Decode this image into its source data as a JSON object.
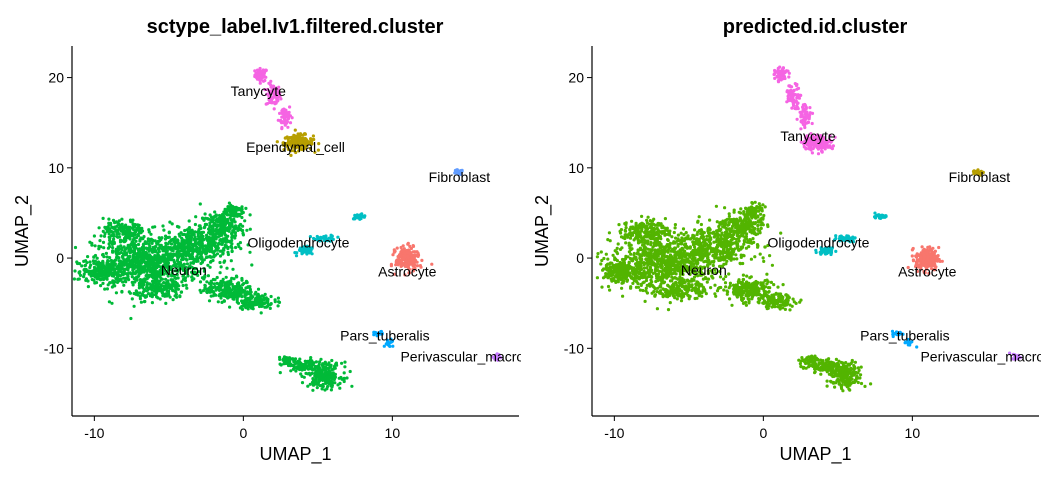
{
  "chart_data": [
    {
      "type": "scatter",
      "title": "sctype_label.lv1.filtered.cluster",
      "xlabel": "UMAP_1",
      "ylabel": "UMAP_2",
      "xlim": [
        -11.5,
        18.5
      ],
      "ylim": [
        -17.5,
        23.5
      ],
      "xticks": [
        -10,
        0,
        10
      ],
      "yticks": [
        20,
        10,
        0,
        -10
      ],
      "grid": false,
      "legend": "none",
      "clusters": [
        {
          "label": "Tanycyte",
          "color": "#F564E3",
          "label_pos": [
            1.0,
            18.5
          ],
          "centroid": [
            3.0,
            16.8
          ]
        },
        {
          "label": "Ependymal_cell",
          "color": "#B79F00",
          "label_pos": [
            3.5,
            12.3
          ],
          "centroid": [
            3.8,
            12.8
          ]
        },
        {
          "label": "Fibroblast",
          "color": "#619CFF",
          "label_pos": [
            14.5,
            9.0
          ],
          "centroid": [
            14.5,
            9.4
          ]
        },
        {
          "label": "Oligodendrocyte",
          "color": "#00BFC4",
          "label_pos": [
            3.7,
            1.7
          ],
          "centroid": [
            5.5,
            2.0
          ]
        },
        {
          "label": "Neuron",
          "color": "#00BA38",
          "label_pos": [
            -4.0,
            -1.3
          ],
          "centroid": [
            -4.0,
            -1.3
          ]
        },
        {
          "label": "Astrocyte",
          "color": "#F8766D",
          "label_pos": [
            11.0,
            -1.5
          ],
          "centroid": [
            11.0,
            -1.3
          ]
        },
        {
          "label": "Pars_tuberalis",
          "color": "#00A9FF",
          "label_pos": [
            9.5,
            -8.6
          ],
          "centroid": [
            9.6,
            -9.3
          ]
        },
        {
          "label": "Perivascular_macrophage",
          "color": "#C77CFF",
          "label_pos": [
            16.0,
            -10.9
          ],
          "centroid": [
            17.0,
            -10.9
          ]
        }
      ]
    },
    {
      "type": "scatter",
      "title": "predicted.id.cluster",
      "xlabel": "UMAP_1",
      "ylabel": "UMAP_2",
      "xlim": [
        -11.5,
        18.5
      ],
      "ylim": [
        -17.5,
        23.5
      ],
      "xticks": [
        -10,
        0,
        10
      ],
      "yticks": [
        20,
        10,
        0,
        -10
      ],
      "grid": false,
      "legend": "none",
      "clusters": [
        {
          "label": "Tanycyte",
          "color": "#F564E3",
          "label_pos": [
            3.0,
            13.5
          ],
          "centroid": [
            3.2,
            15.5
          ]
        },
        {
          "label": "Fibroblast",
          "color": "#B79F00",
          "label_pos": [
            14.5,
            9.0
          ],
          "centroid": [
            14.5,
            9.4
          ]
        },
        {
          "label": "Oligodendrocyte",
          "color": "#00BFC4",
          "label_pos": [
            3.7,
            1.7
          ],
          "centroid": [
            5.5,
            2.0
          ]
        },
        {
          "label": "Neuron",
          "color": "#53B400",
          "label_pos": [
            -4.0,
            -1.3
          ],
          "centroid": [
            -4.0,
            -1.3
          ]
        },
        {
          "label": "Astrocyte",
          "color": "#F8766D",
          "label_pos": [
            11.0,
            -1.5
          ],
          "centroid": [
            11.0,
            -1.3
          ]
        },
        {
          "label": "Pars_tuberalis",
          "color": "#00A9FF",
          "label_pos": [
            9.5,
            -8.6
          ],
          "centroid": [
            9.6,
            -9.3
          ]
        },
        {
          "label": "Perivascular_macrophage",
          "color": "#C77CFF",
          "label_pos": [
            16.0,
            -10.9
          ],
          "centroid": [
            17.0,
            -10.9
          ]
        }
      ]
    }
  ]
}
